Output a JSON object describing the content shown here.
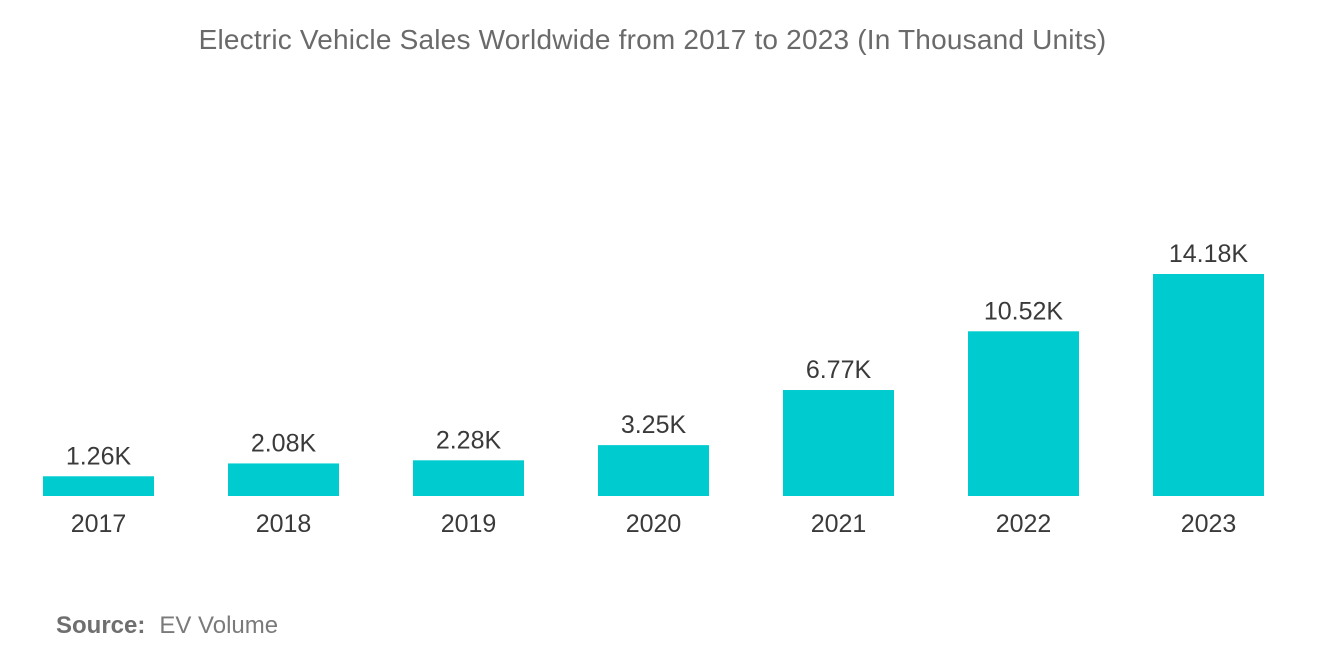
{
  "chart_data": {
    "type": "bar",
    "title": "Electric Vehicle Sales Worldwide from 2017 to 2023 (In Thousand Units)",
    "categories": [
      "2017",
      "2018",
      "2019",
      "2020",
      "2021",
      "2022",
      "2023"
    ],
    "values": [
      1.26,
      2.08,
      2.28,
      3.25,
      6.77,
      10.52,
      14.18
    ],
    "data_labels": [
      "1.26K",
      "2.08K",
      "2.28K",
      "3.25K",
      "6.77K",
      "10.52K",
      "14.18K"
    ],
    "xlabel": "",
    "ylabel": "",
    "grid": false,
    "legend": "none",
    "bar_color": "#00ccd0"
  },
  "source": {
    "label": "Source:",
    "text": "EV Volume"
  }
}
